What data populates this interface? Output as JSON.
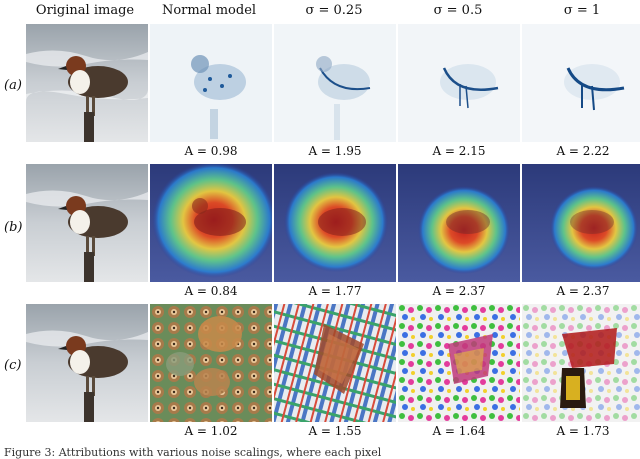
{
  "headers": [
    "Original image",
    "Normal model",
    "σ = 0.25",
    "σ = 0.5",
    "σ = 1"
  ],
  "rows": [
    {
      "label": "(a)",
      "scores": [
        "A = 0.98",
        "A = 1.95",
        "A = 2.15",
        "A = 2.22"
      ]
    },
    {
      "label": "(b)",
      "scores": [
        "A = 0.84",
        "A = 1.77",
        "A = 2.37",
        "A = 2.37"
      ]
    },
    {
      "label": "(c)",
      "scores": [
        "A = 1.02",
        "A = 1.55",
        "A = 1.64",
        "A = 1.73"
      ]
    }
  ],
  "caption_fragment": "Figure 3: Attributions with various noise scalings, where each pixel"
}
